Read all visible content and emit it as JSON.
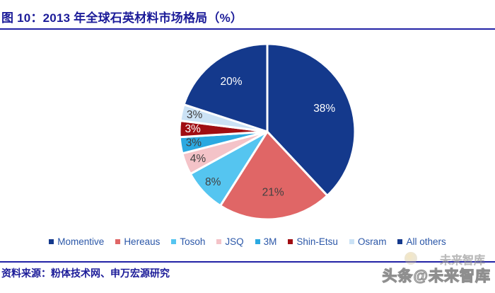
{
  "header": {
    "title": "图 10：2013 年全球石英材料市场格局（%）"
  },
  "footer": {
    "source": "资料来源：粉体技术网、申万宏源研究",
    "watermark": "头条@未来智库",
    "watermark_faint": "未来智库"
  },
  "colors": {
    "title_text": "#1c1c99",
    "rule_line": "#2222a6",
    "legend_text": "#2b57a8",
    "label_dark": "#404040",
    "label_light": "#ffffff",
    "background": "#ffffff"
  },
  "chart_data": {
    "type": "pie",
    "title": "2013 年全球石英材料市场格局（%）",
    "unit": "%",
    "start_angle_deg": 0,
    "direction": "clockwise",
    "legend_position": "bottom",
    "grid": false,
    "series": [
      {
        "name": "Momentive",
        "value": 38,
        "label": "38%",
        "color": "#14398c"
      },
      {
        "name": "Hereaus",
        "value": 21,
        "label": "21%",
        "color": "#e06666"
      },
      {
        "name": "Tosoh",
        "value": 8,
        "label": "8%",
        "color": "#55c5f0"
      },
      {
        "name": "JSQ",
        "value": 4,
        "label": "4%",
        "color": "#f4c3c8"
      },
      {
        "name": "3M",
        "value": 3,
        "label": "3%",
        "color": "#2ba9e1"
      },
      {
        "name": "Shin-Etsu",
        "value": 3,
        "label": "3%",
        "color": "#a00d12"
      },
      {
        "name": "Osram",
        "value": 3,
        "label": "3%",
        "color": "#cbe2f5"
      },
      {
        "name": "All others",
        "value": 20,
        "label": "20%",
        "color": "#14398c"
      }
    ]
  }
}
